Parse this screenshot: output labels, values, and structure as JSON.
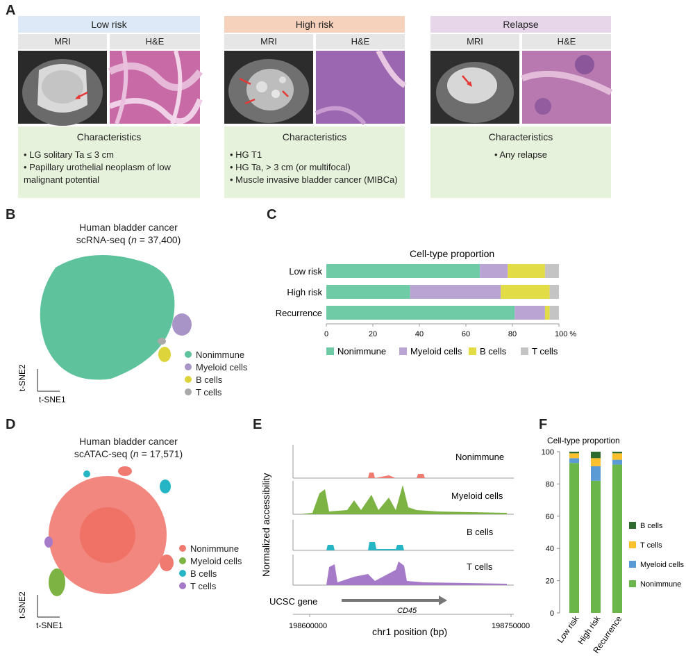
{
  "panel_a": {
    "letter": "A",
    "groups": [
      {
        "title": "Low risk",
        "header_color": "#dde9f6",
        "mri_label": "MRI",
        "he_label": "H&E",
        "char_title": "Characteristics",
        "bullets": [
          "• LG solitary Ta ≤ 3 cm",
          "• Papillary urothelial neoplasm of low malignant potential"
        ]
      },
      {
        "title": "High risk",
        "header_color": "#f6d2bc",
        "mri_label": "MRI",
        "he_label": "H&E",
        "char_title": "Characteristics",
        "bullets": [
          "• HG T1",
          "• HG Ta, > 3 cm (or multifocal)",
          "• Muscle invasive bladder cancer (MIBCa)"
        ]
      },
      {
        "title": "Relapse",
        "header_color": "#e7d6ea",
        "mri_label": "MRI",
        "he_label": "H&E",
        "char_title": "Characteristics",
        "bullets": [
          "• Any relapse"
        ]
      }
    ]
  },
  "panel_b": {
    "letter": "B",
    "title_line1": "Human bladder cancer",
    "title_line2_pre": "scRNA-seq (",
    "title_line2_n": "n",
    "title_line2_post": " = 37,400)",
    "axis_y": "t-SNE2",
    "axis_x": "t-SNE1",
    "legend": [
      {
        "label": "Nonimmune",
        "color": "#5ec29c"
      },
      {
        "label": "Myeloid cells",
        "color": "#a994c8"
      },
      {
        "label": "B cells",
        "color": "#dcd43a"
      },
      {
        "label": "T cells",
        "color": "#a9a9a9"
      }
    ]
  },
  "panel_c": {
    "letter": "C",
    "chart_data": {
      "type": "bar",
      "orientation": "horizontal-stacked",
      "title": "Cell-type proportion",
      "categories": [
        "Low risk",
        "High risk",
        "Recurrence"
      ],
      "series": [
        {
          "name": "Nonimmune",
          "color": "#6ecba6",
          "values": [
            66,
            36,
            81
          ]
        },
        {
          "name": "Myeloid cells",
          "color": "#b9a4d3",
          "values": [
            12,
            39,
            13
          ]
        },
        {
          "name": "B cells",
          "color": "#e2dc46",
          "values": [
            16,
            21,
            2
          ]
        },
        {
          "name": "T cells",
          "color": "#c4c4c4",
          "values": [
            6,
            4,
            4
          ]
        }
      ],
      "xlim": [
        0,
        100
      ],
      "xticks": [
        "0",
        "20",
        "40",
        "60",
        "80",
        "100 %"
      ]
    }
  },
  "panel_d": {
    "letter": "D",
    "title_line1": "Human bladder cancer",
    "title_line2_pre": "scATAC-seq (",
    "title_line2_n": "n",
    "title_line2_post": " = 17,571)",
    "axis_y": "t-SNE2",
    "axis_x": "t-SNE1",
    "legend": [
      {
        "label": "Nonimmune",
        "color": "#f07a70"
      },
      {
        "label": "Myeloid cells",
        "color": "#7cb342"
      },
      {
        "label": "B cells",
        "color": "#26b5c5"
      },
      {
        "label": "T cells",
        "color": "#a57bc9"
      }
    ]
  },
  "panel_e": {
    "letter": "E",
    "ylabel": "Normalized accessibility",
    "tracks": [
      {
        "name": "Nonimmune",
        "color": "#f07a70"
      },
      {
        "name": "Myeloid cells",
        "color": "#7cb342"
      },
      {
        "name": "B cells",
        "color": "#26b5c5"
      },
      {
        "name": "T cells",
        "color": "#a57bc9"
      }
    ],
    "gene_label": "UCSC gene",
    "gene_name": "CD45",
    "xticks": [
      "198600000",
      "198750000"
    ],
    "xlabel": "chr1 position (bp)"
  },
  "panel_f": {
    "letter": "F",
    "chart_data": {
      "type": "bar",
      "orientation": "vertical-stacked",
      "title": "Cell-type proportion",
      "categories": [
        "Low risk",
        "High risk",
        "Recurrence"
      ],
      "series": [
        {
          "name": "Nonimmune",
          "color": "#6ab64a",
          "values": [
            93,
            82,
            92
          ]
        },
        {
          "name": "Myeloid cells",
          "color": "#5b9bd5",
          "values": [
            3,
            9,
            3
          ]
        },
        {
          "name": "T cells",
          "color": "#fbc02d",
          "values": [
            3,
            5,
            4
          ]
        },
        {
          "name": "B cells",
          "color": "#2e6b2e",
          "values": [
            1,
            4,
            1
          ]
        }
      ],
      "ylim": [
        0,
        100
      ],
      "yticks": [
        "0",
        "20",
        "40",
        "60",
        "80",
        "100"
      ]
    }
  }
}
